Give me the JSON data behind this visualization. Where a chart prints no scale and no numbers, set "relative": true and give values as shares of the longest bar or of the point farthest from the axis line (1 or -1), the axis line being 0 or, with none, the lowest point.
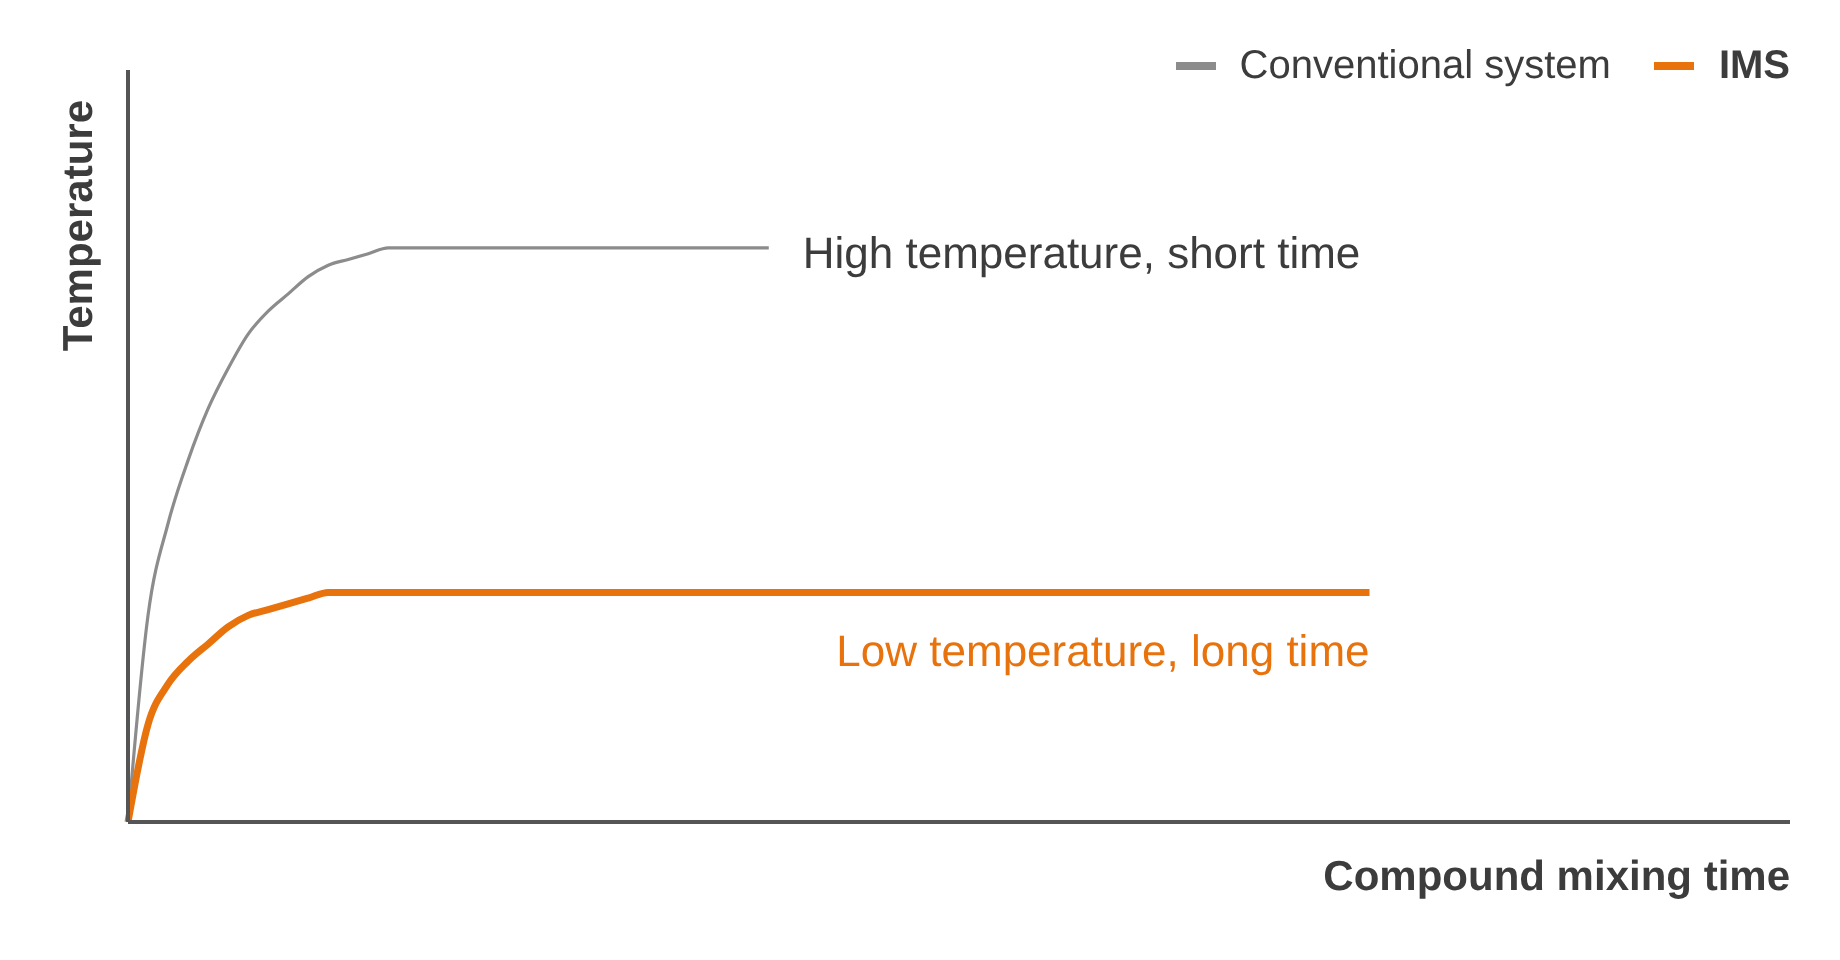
{
  "chart_data": {
    "type": "line",
    "xlabel": "Compound mixing time",
    "ylabel": "Temperature",
    "relative": true,
    "legend": "top right",
    "categories": [
      null,
      null,
      null,
      null,
      null,
      null,
      null,
      null,
      null,
      null,
      null,
      null,
      null,
      null,
      null,
      null,
      null,
      null,
      null,
      null,
      null,
      null,
      null,
      null,
      null,
      null,
      null,
      null,
      null,
      null,
      null,
      null,
      null,
      null,
      null,
      null,
      null,
      null,
      null,
      null,
      null,
      null,
      null,
      null,
      null,
      null,
      null,
      null,
      null,
      null,
      null,
      null,
      null,
      null,
      null,
      null,
      null,
      null,
      null,
      null,
      null,
      null,
      null,
      null,
      null,
      null,
      null,
      null,
      null,
      null,
      null,
      null,
      null,
      null,
      null,
      null,
      null,
      null,
      null,
      null,
      null,
      null,
      null,
      null
    ],
    "series": [
      {
        "name": "Conventional system",
        "color": "#8c8c8c",
        "values": [
          0,
          0.36,
          0.52,
          0.63,
          0.72,
          0.79,
          0.85,
          0.89,
          0.92,
          0.95,
          0.97,
          0.98,
          0.99,
          1,
          1,
          1,
          1,
          1,
          1,
          1,
          1,
          1,
          1,
          1,
          1,
          1,
          1,
          1,
          1,
          1,
          1,
          1,
          1,
          null,
          null,
          null,
          null,
          null,
          null,
          null,
          null,
          null,
          null,
          null,
          null,
          null,
          null,
          null,
          null,
          null,
          null,
          null,
          null,
          null,
          null,
          null,
          null,
          null,
          null,
          null,
          null,
          null,
          null,
          null,
          null,
          null,
          null,
          null,
          null,
          null,
          null,
          null,
          null,
          null,
          null,
          null,
          null,
          null,
          null,
          null,
          null,
          null,
          null,
          null
        ]
      },
      {
        "name": "IMS",
        "color": "#e8730c",
        "values": [
          0,
          0.17,
          0.24,
          0.28,
          0.31,
          0.34,
          0.36,
          0.37,
          0.38,
          0.39,
          0.4,
          0.4,
          0.4,
          0.4,
          0.4,
          0.4,
          0.4,
          0.4,
          0.4,
          0.4,
          0.4,
          0.4,
          0.4,
          0.4,
          0.4,
          0.4,
          0.4,
          0.4,
          0.4,
          0.4,
          0.4,
          0.4,
          0.4,
          0.4,
          0.4,
          0.4,
          0.4,
          0.4,
          0.4,
          0.4,
          0.4,
          0.4,
          0.4,
          0.4,
          0.4,
          0.4,
          0.4,
          0.4,
          0.4,
          0.4,
          0.4,
          0.4,
          0.4,
          0.4,
          0.4,
          0.4,
          0.4,
          0.4,
          0.4,
          0.4,
          0.4,
          0.4,
          0.4,
          null,
          null,
          null,
          null,
          null,
          null,
          null,
          null,
          null,
          null,
          null,
          null,
          null,
          null,
          null,
          null,
          null,
          null,
          null,
          null,
          null
        ]
      }
    ],
    "annotations": [
      "High temperature, short time",
      "Low temperature, long time"
    ]
  }
}
